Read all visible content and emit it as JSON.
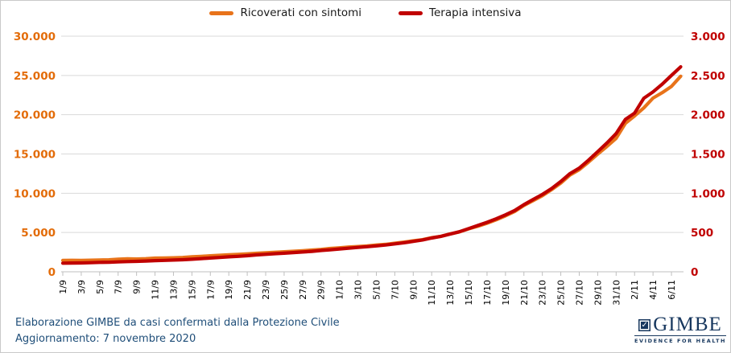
{
  "legend": {
    "items": [
      {
        "label": "Ricoverati con sintomi",
        "color": "#E8731A"
      },
      {
        "label": "Terapia intensiva",
        "color": "#C00000"
      }
    ]
  },
  "footer": {
    "line1": "Elaborazione GIMBE da casi confermati dalla Protezione Civile",
    "line2": "Aggiornamento: 7 novembre 2020",
    "color": "#1F4E79"
  },
  "logo": {
    "name": "GIMBE",
    "tagline": "EVIDENCE FOR HEALTH",
    "check_glyph": "✓",
    "color": "#17375E"
  },
  "chart_data": {
    "type": "line",
    "title": "",
    "xlabel": "",
    "ylabel_left": "",
    "ylabel_right": "",
    "grid": true,
    "legend_position": "top",
    "categories": [
      "1/9",
      "2/9",
      "3/9",
      "4/9",
      "5/9",
      "6/9",
      "7/9",
      "8/9",
      "9/9",
      "10/9",
      "11/9",
      "12/9",
      "13/9",
      "14/9",
      "15/9",
      "16/9",
      "17/9",
      "18/9",
      "19/9",
      "20/9",
      "21/9",
      "22/9",
      "23/9",
      "24/9",
      "25/9",
      "26/9",
      "27/9",
      "28/9",
      "29/9",
      "30/9",
      "1/10",
      "2/10",
      "3/10",
      "4/10",
      "5/10",
      "6/10",
      "7/10",
      "8/10",
      "9/10",
      "10/10",
      "11/10",
      "12/10",
      "13/10",
      "14/10",
      "15/10",
      "16/10",
      "17/10",
      "18/10",
      "19/10",
      "20/10",
      "21/10",
      "22/10",
      "23/10",
      "24/10",
      "25/10",
      "26/10",
      "27/10",
      "28/10",
      "29/10",
      "30/10",
      "31/10",
      "1/11",
      "2/11",
      "3/11",
      "4/11",
      "5/11",
      "6/11",
      "7/11"
    ],
    "x_tick_labels": [
      "1/9",
      "3/9",
      "5/9",
      "7/9",
      "9/9",
      "11/9",
      "13/9",
      "15/9",
      "17/9",
      "19/9",
      "21/9",
      "23/9",
      "25/9",
      "27/9",
      "29/9",
      "1/10",
      "3/10",
      "5/10",
      "7/10",
      "9/10",
      "11/10",
      "13/10",
      "15/10",
      "17/10",
      "19/10",
      "21/10",
      "23/10",
      "25/10",
      "27/10",
      "29/10",
      "31/10",
      "2/11",
      "4/11",
      "6/11"
    ],
    "series": [
      {
        "name": "Ricoverati con sintomi",
        "axis": "left",
        "color": "#E8731A",
        "values": [
          1450,
          1460,
          1455,
          1470,
          1505,
          1525,
          1605,
          1650,
          1625,
          1670,
          1740,
          1765,
          1780,
          1820,
          1900,
          1970,
          2035,
          2100,
          2160,
          2215,
          2280,
          2350,
          2420,
          2490,
          2550,
          2610,
          2680,
          2760,
          2850,
          2970,
          3050,
          3150,
          3210,
          3290,
          3410,
          3490,
          3630,
          3780,
          3940,
          4090,
          4340,
          4520,
          4820,
          5080,
          5470,
          5800,
          6180,
          6620,
          7130,
          7680,
          8450,
          9060,
          9690,
          10450,
          11290,
          12320,
          13000,
          13960,
          14980,
          15960,
          17000,
          18900,
          19840,
          20870,
          22120,
          22810,
          23600,
          24900
        ]
      },
      {
        "name": "Terapia intensiva",
        "axis": "right",
        "color": "#C00000",
        "values": [
          110,
          112,
          113,
          116,
          120,
          121,
          126,
          130,
          133,
          137,
          142,
          145,
          150,
          154,
          160,
          168,
          175,
          182,
          190,
          197,
          205,
          215,
          222,
          230,
          237,
          245,
          252,
          260,
          271,
          280,
          291,
          300,
          310,
          319,
          330,
          341,
          355,
          370,
          387,
          405,
          430,
          452,
          480,
          510,
          550,
          590,
          630,
          675,
          725,
          780,
          855,
          920,
          985,
          1060,
          1150,
          1250,
          1320,
          1420,
          1530,
          1640,
          1760,
          1940,
          2020,
          2210,
          2290,
          2390,
          2500,
          2610
        ]
      }
    ],
    "left_axis": {
      "min": 0,
      "max": 30000,
      "tick_labels": [
        "0",
        "5.000",
        "10.000",
        "15.000",
        "20.000",
        "25.000",
        "30.000"
      ],
      "color": "#E36C09"
    },
    "right_axis": {
      "min": 0,
      "max": 3000,
      "tick_labels": [
        "0",
        "500",
        "1.000",
        "1.500",
        "2.000",
        "2.500",
        "3.000"
      ],
      "color": "#C00000"
    },
    "grid_color": "#D9D9D9",
    "axis_line_color": "#BFBFBF",
    "x_label_color": "#000000"
  }
}
